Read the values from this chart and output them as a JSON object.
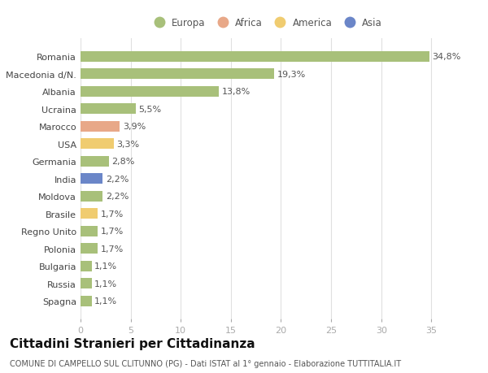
{
  "categories": [
    "Romania",
    "Macedonia d/N.",
    "Albania",
    "Ucraina",
    "Marocco",
    "USA",
    "Germania",
    "India",
    "Moldova",
    "Brasile",
    "Regno Unito",
    "Polonia",
    "Bulgaria",
    "Russia",
    "Spagna"
  ],
  "values": [
    34.8,
    19.3,
    13.8,
    5.5,
    3.9,
    3.3,
    2.8,
    2.2,
    2.2,
    1.7,
    1.7,
    1.7,
    1.1,
    1.1,
    1.1
  ],
  "labels": [
    "34,8%",
    "19,3%",
    "13,8%",
    "5,5%",
    "3,9%",
    "3,3%",
    "2,8%",
    "2,2%",
    "2,2%",
    "1,7%",
    "1,7%",
    "1,7%",
    "1,1%",
    "1,1%",
    "1,1%"
  ],
  "colors": [
    "#a8c07a",
    "#a8c07a",
    "#a8c07a",
    "#a8c07a",
    "#e8a888",
    "#f0cc70",
    "#a8c07a",
    "#6b86c8",
    "#a8c07a",
    "#f0cc70",
    "#a8c07a",
    "#a8c07a",
    "#a8c07a",
    "#a8c07a",
    "#a8c07a"
  ],
  "continent_labels": [
    "Europa",
    "Africa",
    "America",
    "Asia"
  ],
  "continent_colors": [
    "#a8c07a",
    "#e8a888",
    "#f0cc70",
    "#6b86c8"
  ],
  "title": "Cittadini Stranieri per Cittadinanza",
  "subtitle": "COMUNE DI CAMPELLO SUL CLITUNNO (PG) - Dati ISTAT al 1° gennaio - Elaborazione TUTTITALIA.IT",
  "xlim": [
    0,
    37
  ],
  "xticks": [
    0,
    5,
    10,
    15,
    20,
    25,
    30,
    35
  ],
  "background_color": "#ffffff",
  "grid_color": "#e0e0e0",
  "bar_height": 0.6,
  "label_fontsize": 8,
  "tick_fontsize": 8,
  "title_fontsize": 11,
  "subtitle_fontsize": 7,
  "legend_fontsize": 8.5
}
